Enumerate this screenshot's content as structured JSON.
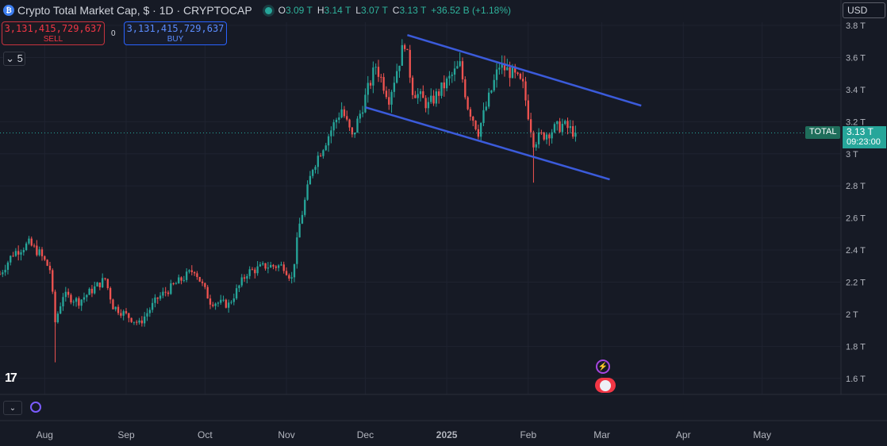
{
  "header": {
    "logo_text": "₿",
    "title": "Crypto Total Market Cap, $ · 1D · CRYPTOCAP",
    "ohlc": {
      "o_label": "O",
      "o": "3.09 T",
      "h_label": "H",
      "h": "3.14 T",
      "l_label": "L",
      "l": "3.07 T",
      "c_label": "C",
      "c": "3.13 T"
    },
    "change": "+36.52 B (+1.18%)"
  },
  "trade": {
    "sell_price": "3,131,415,729,637",
    "sell_label": "SELL",
    "buy_price": "3,131,415,729,637",
    "buy_label": "BUY",
    "spread": "0"
  },
  "controls": {
    "collapse_label": "⌄ 5",
    "currency": "USD",
    "tv_logo": "17",
    "bottom_collapse": "⌄"
  },
  "last_price": {
    "label": "TOTAL",
    "value": "3.13 T",
    "countdown": "09:23:00"
  },
  "colors": {
    "up": "#26a69a",
    "down": "#ef5350",
    "channel": "#3b5bdb",
    "grid": "#1f2330",
    "bg": "#161a25"
  },
  "chart_data": {
    "type": "candlestick",
    "symbol": "TOTAL",
    "y_axis": {
      "range": [
        1.5,
        3.82
      ],
      "ticks": [
        1.6,
        1.8,
        2.0,
        2.2,
        2.4,
        2.6,
        2.8,
        3.0,
        3.2,
        3.4,
        3.6,
        3.8
      ],
      "tick_labels": [
        "1.6 T",
        "1.8 T",
        "2 T",
        "2.2 T",
        "2.4 T",
        "2.6 T",
        "2.8 T",
        "3 T",
        "3.2 T",
        "3.4 T",
        "3.6 T",
        "3.8 T"
      ]
    },
    "x_axis": {
      "start": "2024-07-15",
      "end": "2025-05-31",
      "ticks": [
        {
          "date": "2024-08-01",
          "label": "Aug"
        },
        {
          "date": "2024-09-01",
          "label": "Sep"
        },
        {
          "date": "2024-10-01",
          "label": "Oct"
        },
        {
          "date": "2024-11-01",
          "label": "Nov"
        },
        {
          "date": "2024-12-01",
          "label": "Dec"
        },
        {
          "date": "2025-01-01",
          "label": "2025"
        },
        {
          "date": "2025-02-01",
          "label": "Feb"
        },
        {
          "date": "2025-03-01",
          "label": "Mar"
        },
        {
          "date": "2025-04-01",
          "label": "Apr"
        },
        {
          "date": "2025-05-01",
          "label": "May"
        }
      ]
    },
    "grid": true,
    "last_value": 3.13,
    "close_path": [
      [
        "2024-07-15",
        2.25
      ],
      [
        "2024-07-20",
        2.38
      ],
      [
        "2024-07-26",
        2.44
      ],
      [
        "2024-07-30",
        2.38
      ],
      [
        "2024-08-03",
        2.28
      ],
      [
        "2024-08-05",
        1.95
      ],
      [
        "2024-08-08",
        2.12
      ],
      [
        "2024-08-14",
        2.08
      ],
      [
        "2024-08-24",
        2.22
      ],
      [
        "2024-08-27",
        2.05
      ],
      [
        "2024-09-06",
        1.94
      ],
      [
        "2024-09-13",
        2.1
      ],
      [
        "2024-09-27",
        2.28
      ],
      [
        "2024-10-03",
        2.08
      ],
      [
        "2024-10-10",
        2.06
      ],
      [
        "2024-10-17",
        2.26
      ],
      [
        "2024-10-24",
        2.3
      ],
      [
        "2024-10-31",
        2.3
      ],
      [
        "2024-11-03",
        2.22
      ],
      [
        "2024-11-06",
        2.56
      ],
      [
        "2024-11-11",
        2.92
      ],
      [
        "2024-11-22",
        3.28
      ],
      [
        "2024-11-26",
        3.1
      ],
      [
        "2024-12-05",
        3.55
      ],
      [
        "2024-12-10",
        3.35
      ],
      [
        "2024-12-16",
        3.7
      ],
      [
        "2024-12-19",
        3.4
      ],
      [
        "2024-12-25",
        3.3
      ],
      [
        "2025-01-06",
        3.55
      ],
      [
        "2025-01-09",
        3.3
      ],
      [
        "2025-01-13",
        3.14
      ],
      [
        "2025-01-21",
        3.55
      ],
      [
        "2025-01-26",
        3.5
      ],
      [
        "2025-01-30",
        3.42
      ],
      [
        "2025-02-03",
        3.08
      ],
      [
        "2025-02-07",
        3.12
      ],
      [
        "2025-02-14",
        3.18
      ],
      [
        "2025-02-19",
        3.13
      ]
    ],
    "trendlines": [
      {
        "name": "upper",
        "from": [
          "2024-12-17",
          3.74
        ],
        "to": [
          "2025-03-16",
          3.3
        ]
      },
      {
        "name": "lower",
        "from": [
          "2024-12-01",
          3.29
        ],
        "to": [
          "2025-03-04",
          2.84
        ]
      }
    ]
  }
}
